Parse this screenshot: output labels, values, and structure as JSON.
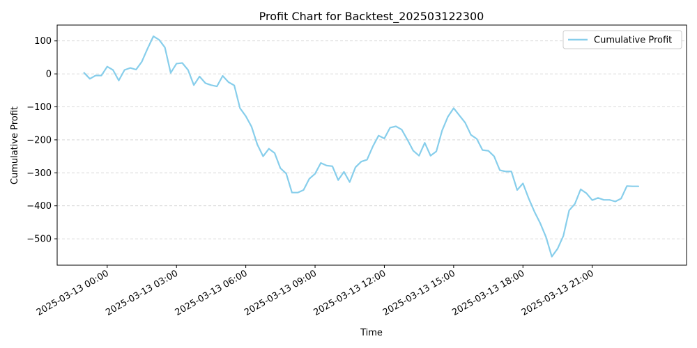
{
  "chart_data": {
    "type": "line",
    "title": "Profit Chart for Backtest_202503122300",
    "xlabel": "Time",
    "ylabel": "Cumulative Profit",
    "ylim": [
      -580,
      148
    ],
    "xlim": [
      "2025-03-12 21:50",
      "2025-03-14 01:05"
    ],
    "grid": "y-dashed",
    "legend_position": "top-right",
    "x_ticks": [
      "2025-03-13 00:00",
      "2025-03-13 03:00",
      "2025-03-13 06:00",
      "2025-03-13 09:00",
      "2025-03-13 12:00",
      "2025-03-13 15:00",
      "2025-03-13 18:00",
      "2025-03-13 21:00"
    ],
    "y_ticks": [
      100,
      0,
      -100,
      -200,
      -300,
      -400,
      -500
    ],
    "y_tick_labels": [
      "100",
      "0",
      "−100",
      "−200",
      "−300",
      "−400",
      "−500"
    ],
    "series": [
      {
        "name": "Cumulative Profit",
        "color": "#87CEEB",
        "x": [
          "2025-03-12 23:00",
          "2025-03-12 23:15",
          "2025-03-12 23:30",
          "2025-03-12 23:45",
          "2025-03-13 00:00",
          "2025-03-13 00:15",
          "2025-03-13 00:30",
          "2025-03-13 00:45",
          "2025-03-13 01:00",
          "2025-03-13 01:15",
          "2025-03-13 01:30",
          "2025-03-13 01:45",
          "2025-03-13 02:00",
          "2025-03-13 02:15",
          "2025-03-13 02:30",
          "2025-03-13 02:45",
          "2025-03-13 03:00",
          "2025-03-13 03:15",
          "2025-03-13 03:30",
          "2025-03-13 03:45",
          "2025-03-13 04:00",
          "2025-03-13 04:15",
          "2025-03-13 04:30",
          "2025-03-13 04:45",
          "2025-03-13 05:00",
          "2025-03-13 05:15",
          "2025-03-13 05:30",
          "2025-03-13 05:45",
          "2025-03-13 06:00",
          "2025-03-13 06:15",
          "2025-03-13 06:30",
          "2025-03-13 06:45",
          "2025-03-13 07:00",
          "2025-03-13 07:15",
          "2025-03-13 07:30",
          "2025-03-13 07:45",
          "2025-03-13 08:00",
          "2025-03-13 08:15",
          "2025-03-13 08:30",
          "2025-03-13 08:45",
          "2025-03-13 09:00",
          "2025-03-13 09:15",
          "2025-03-13 09:30",
          "2025-03-13 09:45",
          "2025-03-13 10:00",
          "2025-03-13 10:15",
          "2025-03-13 10:30",
          "2025-03-13 10:45",
          "2025-03-13 11:00",
          "2025-03-13 11:15",
          "2025-03-13 11:30",
          "2025-03-13 11:45",
          "2025-03-13 12:00",
          "2025-03-13 12:15",
          "2025-03-13 12:30",
          "2025-03-13 12:45",
          "2025-03-13 13:00",
          "2025-03-13 13:15",
          "2025-03-13 13:30",
          "2025-03-13 13:45",
          "2025-03-13 14:00",
          "2025-03-13 14:15",
          "2025-03-13 14:30",
          "2025-03-13 14:45",
          "2025-03-13 15:00",
          "2025-03-13 15:15",
          "2025-03-13 15:30",
          "2025-03-13 15:45",
          "2025-03-13 16:00",
          "2025-03-13 16:15",
          "2025-03-13 16:30",
          "2025-03-13 16:45",
          "2025-03-13 17:00",
          "2025-03-13 17:15",
          "2025-03-13 17:30",
          "2025-03-13 17:45",
          "2025-03-13 18:00",
          "2025-03-13 18:15",
          "2025-03-13 18:30",
          "2025-03-13 18:45",
          "2025-03-13 19:00",
          "2025-03-13 19:15",
          "2025-03-13 19:30",
          "2025-03-13 19:45",
          "2025-03-13 20:00",
          "2025-03-13 20:15",
          "2025-03-13 20:30",
          "2025-03-13 20:45",
          "2025-03-13 21:00",
          "2025-03-13 21:15",
          "2025-03-13 21:30",
          "2025-03-13 21:45",
          "2025-03-13 22:00",
          "2025-03-13 22:15",
          "2025-03-13 22:30",
          "2025-03-13 22:45",
          "2025-03-13 23:00"
        ],
        "values": [
          3,
          -15,
          -5,
          -5,
          22,
          12,
          -20,
          12,
          18,
          13,
          37,
          77,
          114,
          103,
          80,
          3,
          31,
          33,
          12,
          -34,
          -8,
          -28,
          -34,
          -38,
          -6,
          -25,
          -35,
          -104,
          -128,
          -160,
          -214,
          -250,
          -227,
          -240,
          -286,
          -302,
          -360,
          -360,
          -352,
          -318,
          -303,
          -270,
          -278,
          -280,
          -322,
          -297,
          -328,
          -283,
          -266,
          -260,
          -220,
          -187,
          -196,
          -163,
          -159,
          -169,
          -200,
          -233,
          -248,
          -209,
          -248,
          -235,
          -172,
          -130,
          -104,
          -126,
          -148,
          -185,
          -197,
          -231,
          -233,
          -250,
          -292,
          -296,
          -296,
          -352,
          -332,
          -378,
          -418,
          -453,
          -495,
          -554,
          -530,
          -491,
          -414,
          -394,
          -350,
          -362,
          -383,
          -376,
          -382,
          -382,
          -387,
          -378,
          -340,
          -341,
          -341
        ]
      }
    ]
  }
}
